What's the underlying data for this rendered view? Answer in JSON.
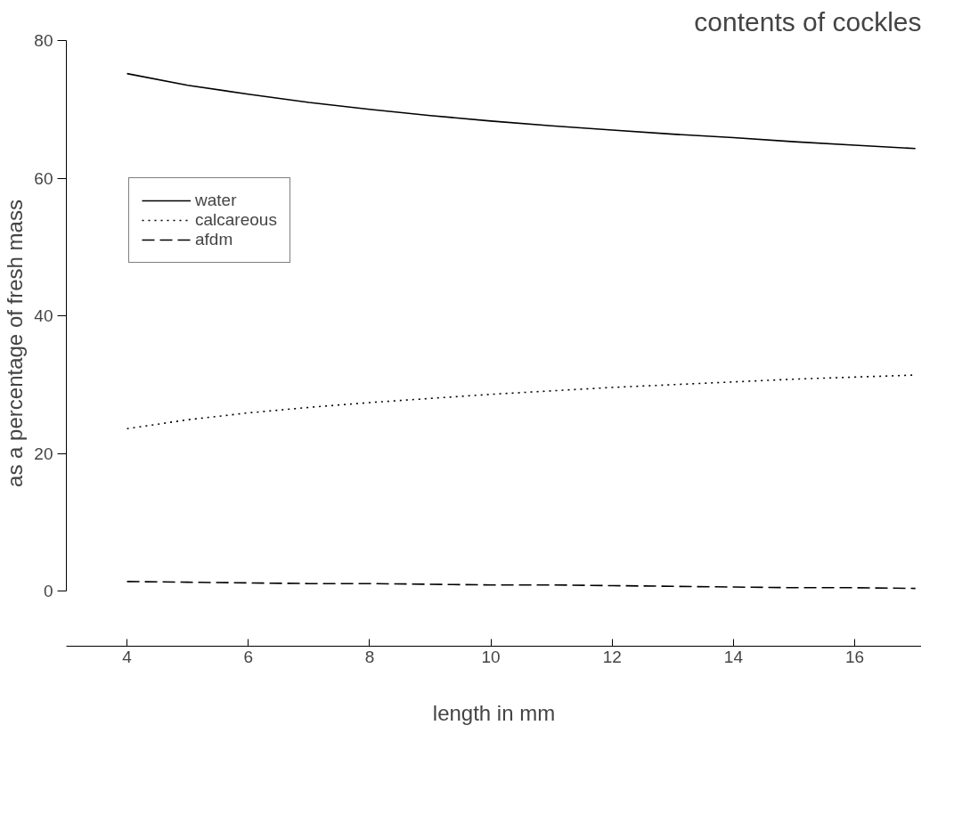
{
  "chart_data": {
    "type": "line",
    "title": "contents of cockles",
    "xlabel": "length in mm",
    "ylabel": "as a percentage of fresh mass",
    "x": [
      4,
      5,
      6,
      7,
      8,
      9,
      10,
      11,
      12,
      13,
      14,
      15,
      16,
      17
    ],
    "series": [
      {
        "name": "water",
        "color": "#000000",
        "line_style": "solid",
        "values": [
          75.2,
          73.5,
          72.2,
          71.0,
          70.0,
          69.1,
          68.3,
          67.6,
          67.0,
          66.4,
          65.9,
          65.3,
          64.8,
          64.3
        ]
      },
      {
        "name": "calcareous",
        "color": "#000000",
        "line_style": "dotted",
        "values": [
          23.6,
          24.9,
          25.9,
          26.7,
          27.4,
          28.0,
          28.6,
          29.1,
          29.6,
          30.0,
          30.4,
          30.8,
          31.1,
          31.4
        ]
      },
      {
        "name": "afdm",
        "color": "#000000",
        "line_style": "dashed",
        "values": [
          1.4,
          1.3,
          1.2,
          1.1,
          1.1,
          1.0,
          0.9,
          0.9,
          0.8,
          0.7,
          0.6,
          0.5,
          0.5,
          0.4
        ]
      }
    ],
    "xlim": [
      3,
      17.1
    ],
    "ylim": [
      -8,
      80
    ],
    "xticks": [
      4,
      6,
      8,
      10,
      12,
      14,
      16
    ],
    "yticks": [
      0,
      20,
      40,
      60,
      80
    ],
    "grid": false,
    "legend": "top left",
    "marker": "none"
  }
}
